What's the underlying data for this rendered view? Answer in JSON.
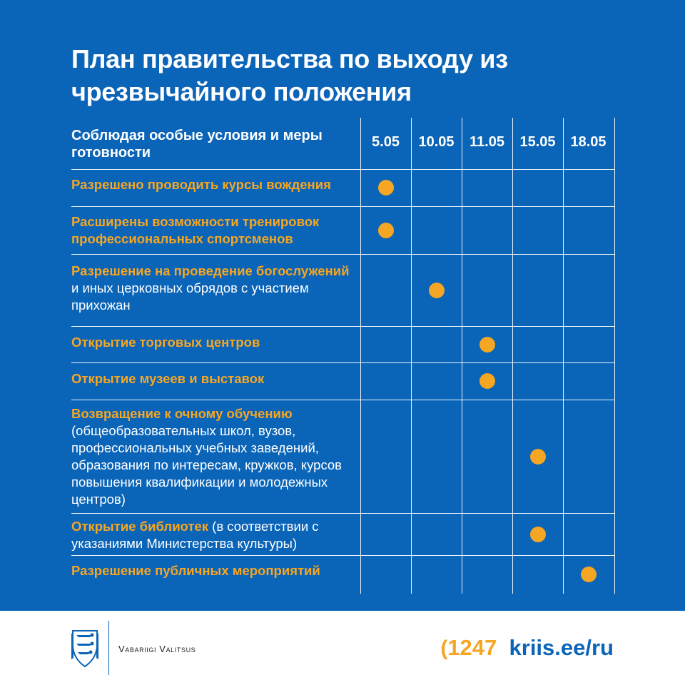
{
  "title_line1": "План правительства по выходу из",
  "title_line2": "чрезвычайного положения",
  "header_label": "Соблюдая особые условия и меры готовности",
  "dates": [
    "5.05",
    "10.05",
    "11.05",
    "15.05",
    "18.05"
  ],
  "rows": [
    {
      "parts": [
        {
          "text": "Разрешено проводить курсы вождения",
          "hl": true
        }
      ],
      "date": "5.05"
    },
    {
      "parts": [
        {
          "text": "Расширены возможности тренировок профессиональных спортсменов",
          "hl": true
        }
      ],
      "date": "5.05"
    },
    {
      "parts": [
        {
          "text": "Разрешение на проведение богослужений",
          "hl": true
        },
        {
          "text": " и иных церковных обрядов с участием прихожан",
          "hl": false
        }
      ],
      "date": "10.05"
    },
    {
      "parts": [
        {
          "text": "Открытие торговых центров",
          "hl": true
        }
      ],
      "date": "11.05"
    },
    {
      "parts": [
        {
          "text": "Открытие музеев и выставок",
          "hl": true
        }
      ],
      "date": "11.05"
    },
    {
      "parts": [
        {
          "text": "Возвращение к очному обучению",
          "hl": true
        },
        {
          "text": " (общеобразовательных школ, вузов, профессиональных учебных заведений, образования по интересам, кружков, курсов повышения квалификации и молодежных центров)",
          "hl": false
        }
      ],
      "date": "15.05"
    },
    {
      "parts": [
        {
          "text": "Открытие библиотек",
          "hl": true
        },
        {
          "text": " (в соответствии с указаниями Министерства культуры)",
          "hl": false
        }
      ],
      "date": "15.05"
    },
    {
      "parts": [
        {
          "text": "Разрешение публичных мероприятий",
          "hl": true
        }
      ],
      "date": "18.05"
    }
  ],
  "footer": {
    "org": "Vabariigi Valitsus",
    "phone_icon": "phone-handset-icon",
    "phone": "1247",
    "site": "kriis.ee/ru"
  },
  "colors": {
    "background": "#0a64b8",
    "accent": "#f5a623",
    "text": "#ffffff"
  }
}
